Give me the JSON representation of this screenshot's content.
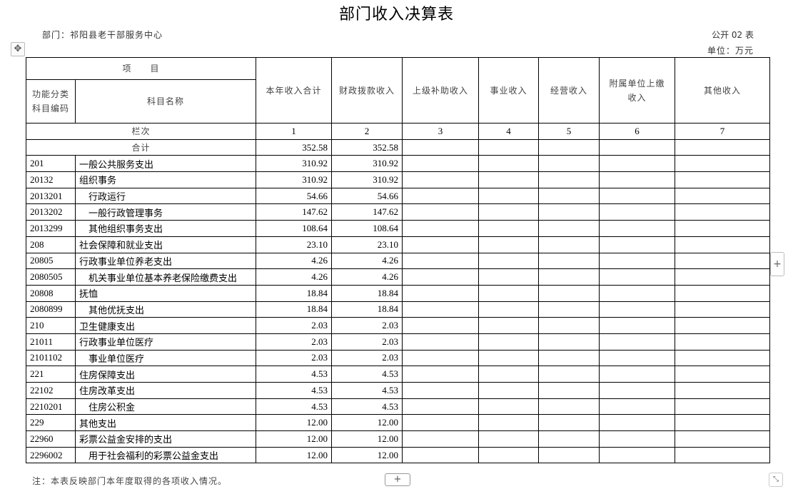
{
  "title": "部门收入决算表",
  "department": "部门：祁阳县老干部服务中心",
  "form_no": "公开 02 表",
  "unit": "单位：万元",
  "header": {
    "item": "项　　目",
    "code": "功能分类科目编码",
    "name": "科目名称",
    "columns": [
      "本年收入合计",
      "财政拨款收入",
      "上级补助收入",
      "事业收入",
      "经营收入",
      "附属单位上缴收入",
      "其他收入"
    ],
    "row_no_label": "栏次",
    "row_nos": [
      "1",
      "2",
      "3",
      "4",
      "5",
      "6",
      "7"
    ]
  },
  "total": {
    "label": "合计",
    "values": [
      "352.58",
      "352.58",
      "",
      "",
      "",
      "",
      ""
    ]
  },
  "rows": [
    {
      "code": "201",
      "name": "一般公共服务支出",
      "level": 1,
      "values": [
        "310.92",
        "310.92"
      ]
    },
    {
      "code": "20132",
      "name": "组织事务",
      "level": 2,
      "values": [
        "310.92",
        "310.92"
      ]
    },
    {
      "code": "2013201",
      "name": "行政运行",
      "level": 3,
      "values": [
        "54.66",
        "54.66"
      ]
    },
    {
      "code": "2013202",
      "name": "一般行政管理事务",
      "level": 3,
      "values": [
        "147.62",
        "147.62"
      ]
    },
    {
      "code": "2013299",
      "name": "其他组织事务支出",
      "level": 3,
      "values": [
        "108.64",
        "108.64"
      ]
    },
    {
      "code": "208",
      "name": "社会保障和就业支出",
      "level": 1,
      "values": [
        "23.10",
        "23.10"
      ]
    },
    {
      "code": "20805",
      "name": "行政事业单位养老支出",
      "level": 2,
      "values": [
        "4.26",
        "4.26"
      ]
    },
    {
      "code": "2080505",
      "name": "机关事业单位基本养老保险缴费支出",
      "level": 3,
      "values": [
        "4.26",
        "4.26"
      ]
    },
    {
      "code": "20808",
      "name": "抚恤",
      "level": 2,
      "values": [
        "18.84",
        "18.84"
      ]
    },
    {
      "code": "2080899",
      "name": "其他优抚支出",
      "level": 3,
      "values": [
        "18.84",
        "18.84"
      ]
    },
    {
      "code": "210",
      "name": "卫生健康支出",
      "level": 1,
      "values": [
        "2.03",
        "2.03"
      ]
    },
    {
      "code": "21011",
      "name": "行政事业单位医疗",
      "level": 2,
      "values": [
        "2.03",
        "2.03"
      ]
    },
    {
      "code": "2101102",
      "name": "事业单位医疗",
      "level": 3,
      "values": [
        "2.03",
        "2.03"
      ]
    },
    {
      "code": "221",
      "name": "住房保障支出",
      "level": 1,
      "values": [
        "4.53",
        "4.53"
      ]
    },
    {
      "code": "22102",
      "name": "住房改革支出",
      "level": 2,
      "values": [
        "4.53",
        "4.53"
      ]
    },
    {
      "code": "2210201",
      "name": "住房公积金",
      "level": 3,
      "values": [
        "4.53",
        "4.53"
      ]
    },
    {
      "code": "229",
      "name": "其他支出",
      "level": 1,
      "values": [
        "12.00",
        "12.00"
      ]
    },
    {
      "code": "22960",
      "name": "彩票公益金安排的支出",
      "level": 2,
      "values": [
        "12.00",
        "12.00"
      ]
    },
    {
      "code": "2296002",
      "name": "用于社会福利的彩票公益金支出",
      "level": 3,
      "values": [
        "12.00",
        "12.00"
      ]
    }
  ],
  "note": "注：本表反映部门本年度取得的各项收入情况。",
  "controls": {
    "move_icon": "✥",
    "add_row": "+",
    "add_col": "+",
    "resize_icon": "⤡"
  }
}
